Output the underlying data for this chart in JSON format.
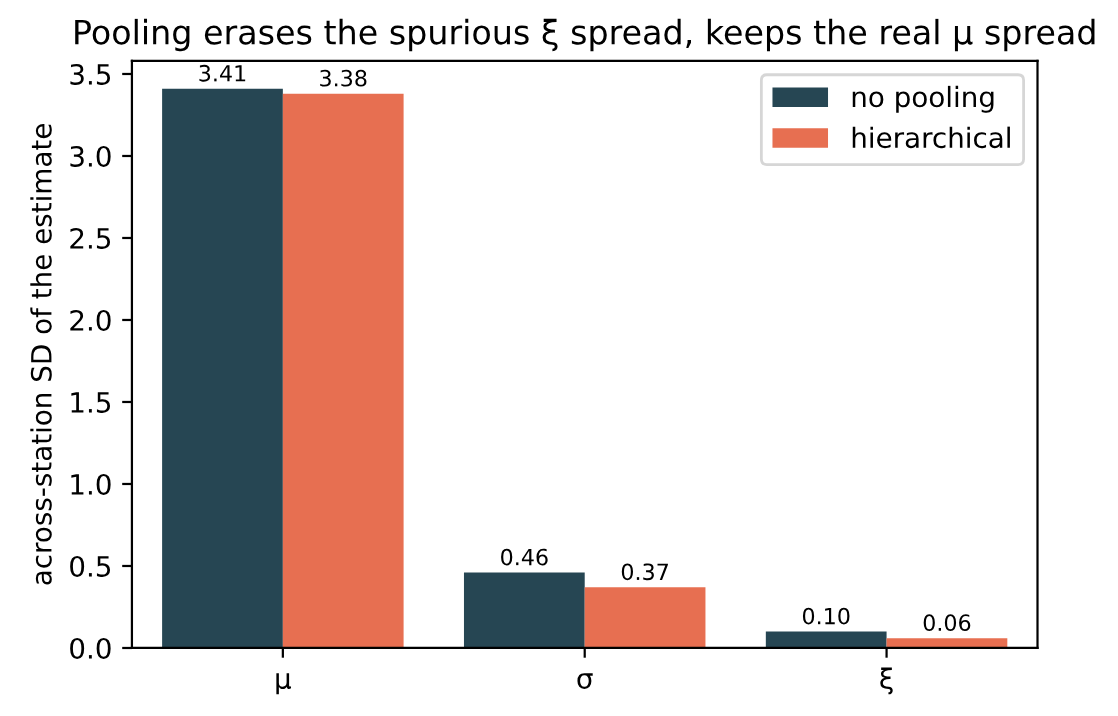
{
  "chart_data": {
    "type": "bar",
    "title": "Pooling erases the spurious ξ spread, keeps the real μ spread",
    "ylabel": "across-station SD of the estimate",
    "categories": [
      "μ",
      "σ",
      "ξ"
    ],
    "series": [
      {
        "name": "no pooling",
        "color": "#264653",
        "values": [
          3.41,
          0.46,
          0.1
        ],
        "value_labels": [
          "3.41",
          "0.46",
          "0.10"
        ]
      },
      {
        "name": "hierarchical",
        "color": "#e76f51",
        "values": [
          3.38,
          0.37,
          0.06
        ],
        "value_labels": [
          "3.38",
          "0.37",
          "0.06"
        ]
      }
    ],
    "ylim": [
      0,
      3.58
    ],
    "yticks": [
      {
        "value": 0,
        "label": "0.0"
      },
      {
        "value": 0.5,
        "label": "0.5"
      },
      {
        "value": 1,
        "label": "1.0"
      },
      {
        "value": 1.5,
        "label": "1.5"
      },
      {
        "value": 2,
        "label": "2.0"
      },
      {
        "value": 2.5,
        "label": "2.5"
      },
      {
        "value": 3,
        "label": "3.0"
      },
      {
        "value": 3.5,
        "label": "3.5"
      }
    ],
    "legend": "top right"
  }
}
